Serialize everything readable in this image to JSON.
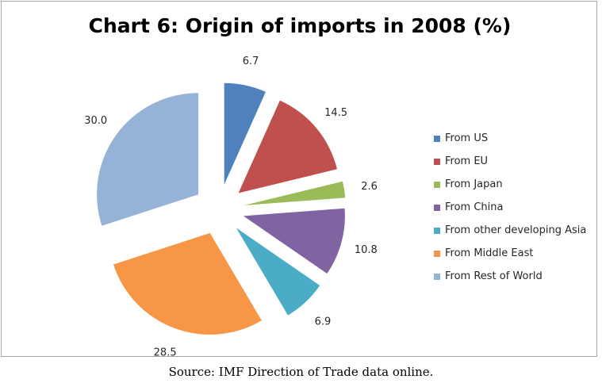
{
  "chart_data": {
    "type": "pie",
    "title": "Chart 6: Origin of imports in 2008 (%)",
    "legend_position": "right",
    "exploded": true,
    "slices": [
      {
        "label": "From US",
        "value": 6.7,
        "value_label": "6.7",
        "color": "#4f81bd"
      },
      {
        "label": "From EU",
        "value": 14.5,
        "value_label": "14.5",
        "color": "#c0504d"
      },
      {
        "label": "From Japan",
        "value": 2.6,
        "value_label": "2.6",
        "color": "#9bbb59"
      },
      {
        "label": "From China",
        "value": 10.8,
        "value_label": "10.8",
        "color": "#8064a2"
      },
      {
        "label": "From other developing Asia",
        "value": 6.9,
        "value_label": "6.9",
        "color": "#4bacc6"
      },
      {
        "label": "From Middle East",
        "value": 28.5,
        "value_label": "28.5",
        "color": "#f79646"
      },
      {
        "label": "From Rest of World",
        "value": 30.0,
        "value_label": "30.0",
        "color": "#95b3d7"
      }
    ]
  },
  "source": "Source: IMF Direction of Trade data online."
}
